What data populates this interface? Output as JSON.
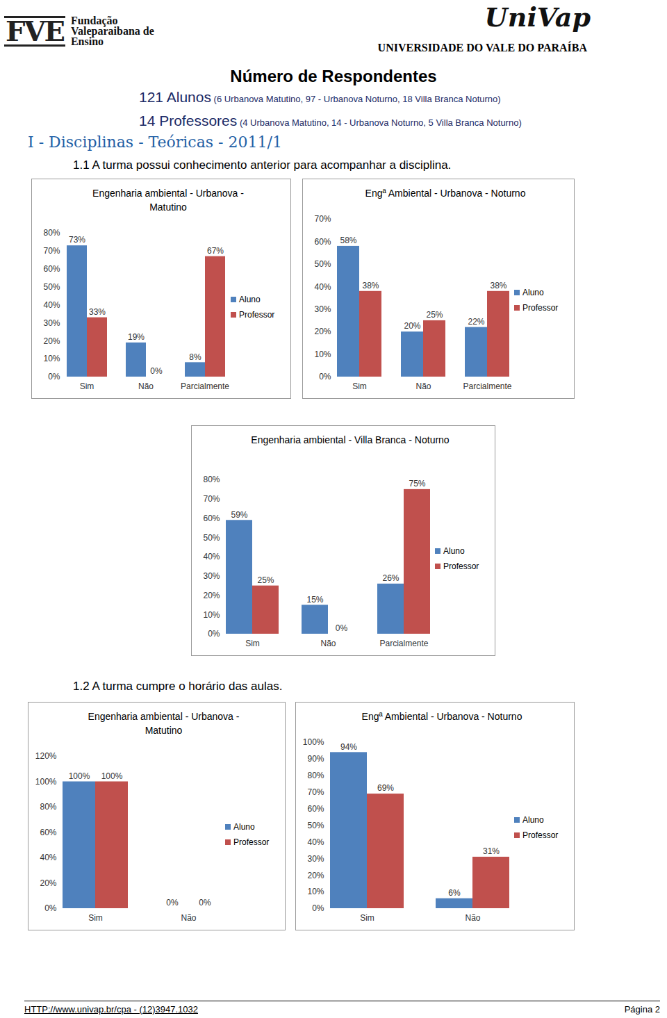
{
  "page": {
    "header": {
      "logo_left": "FVE",
      "org_left": [
        "Fundação",
        "Valeparaibana de",
        "Ensino"
      ],
      "logo_right": "UniVap",
      "org_right": "UNIVERSIDADE DO VALE DO PARAÍBA"
    },
    "heading": "Número de Respondentes",
    "respondents": [
      {
        "count": "121 Alunos",
        "detail": "(6 Urbanova Matutino, 97 - Urbanova Noturno, 18 Villa Branca Noturno)"
      },
      {
        "count": "14 Professores",
        "detail": "(4 Urbanova Matutino, 14 - Urbanova Noturno, 5 Villa Branca Noturno)"
      }
    ],
    "section": "I - Disciplinas - Teóricas - 2011/1",
    "questions": [
      "1.1 A turma possui conhecimento anterior para acompanhar a disciplina.",
      "1.2 A turma cumpre o horário das aulas."
    ],
    "footer": {
      "link": "HTTP://www.univap.br/cpa - (12)3947.1032",
      "page": "Página 2"
    }
  },
  "chart_data": [
    {
      "type": "bar",
      "title": "Engenharia ambiental - Urbanova - Matutino",
      "categories": [
        "Sim",
        "Não",
        "Parcialmente"
      ],
      "series": [
        {
          "name": "Aluno",
          "color": "#4f81bd",
          "values": [
            73,
            19,
            8
          ],
          "value_labels": [
            "73%",
            "19%",
            "8%"
          ]
        },
        {
          "name": "Professor",
          "color": "#c0504d",
          "values": [
            33,
            0,
            67
          ],
          "value_labels": [
            "33%",
            "0%",
            "67%"
          ]
        }
      ],
      "ylim": [
        0,
        80
      ],
      "yticks": [
        {
          "value": 0,
          "label": "0%"
        },
        {
          "value": 10,
          "label": "10%"
        },
        {
          "value": 20,
          "label": "20%"
        },
        {
          "value": 30,
          "label": "30%"
        },
        {
          "value": 40,
          "label": "40%"
        },
        {
          "value": 50,
          "label": "50%"
        },
        {
          "value": 60,
          "label": "60%"
        },
        {
          "value": 70,
          "label": "70%"
        },
        {
          "value": 80,
          "label": "80%"
        }
      ],
      "grid": false,
      "legend": "right",
      "data_labels": true
    },
    {
      "type": "bar",
      "title": "Engª Ambiental - Urbanova - Noturno",
      "categories": [
        "Sim",
        "Não",
        "Parcialmente"
      ],
      "series": [
        {
          "name": "Aluno",
          "color": "#4f81bd",
          "values": [
            58,
            20,
            22
          ],
          "value_labels": [
            "58%",
            "20%",
            "22%"
          ]
        },
        {
          "name": "Professor",
          "color": "#c0504d",
          "values": [
            38,
            25,
            38
          ],
          "value_labels": [
            "38%",
            "25%",
            "38%"
          ]
        }
      ],
      "ylim": [
        0,
        70
      ],
      "yticks": [
        {
          "value": 0,
          "label": "0%"
        },
        {
          "value": 10,
          "label": "10%"
        },
        {
          "value": 20,
          "label": "20%"
        },
        {
          "value": 30,
          "label": "30%"
        },
        {
          "value": 40,
          "label": "40%"
        },
        {
          "value": 50,
          "label": "50%"
        },
        {
          "value": 60,
          "label": "60%"
        },
        {
          "value": 70,
          "label": "70%"
        }
      ],
      "grid": false,
      "legend": "right",
      "data_labels": true
    },
    {
      "type": "bar",
      "title": "Engenharia ambiental - Villa Branca - Noturno",
      "categories": [
        "Sim",
        "Não",
        "Parcialmente"
      ],
      "series": [
        {
          "name": "Aluno",
          "color": "#4f81bd",
          "values": [
            59,
            15,
            26
          ],
          "value_labels": [
            "59%",
            "15%",
            "26%"
          ]
        },
        {
          "name": "Professor",
          "color": "#c0504d",
          "values": [
            25,
            0,
            75
          ],
          "value_labels": [
            "25%",
            "0%",
            "75%"
          ]
        }
      ],
      "ylim": [
        0,
        80
      ],
      "yticks": [
        {
          "value": 0,
          "label": "0%"
        },
        {
          "value": 10,
          "label": "10%"
        },
        {
          "value": 20,
          "label": "20%"
        },
        {
          "value": 30,
          "label": "30%"
        },
        {
          "value": 40,
          "label": "40%"
        },
        {
          "value": 50,
          "label": "50%"
        },
        {
          "value": 60,
          "label": "60%"
        },
        {
          "value": 70,
          "label": "70%"
        },
        {
          "value": 80,
          "label": "80%"
        }
      ],
      "grid": false,
      "legend": "right",
      "data_labels": true
    },
    {
      "type": "bar",
      "title": "Engenharia ambiental - Urbanova - Matutino",
      "categories": [
        "Sim",
        "Não"
      ],
      "series": [
        {
          "name": "Aluno",
          "color": "#4f81bd",
          "values": [
            100,
            0
          ],
          "value_labels": [
            "100%",
            "0%"
          ]
        },
        {
          "name": "Professor",
          "color": "#c0504d",
          "values": [
            100,
            0
          ],
          "value_labels": [
            "100%",
            "0%"
          ]
        }
      ],
      "ylim": [
        0,
        120
      ],
      "yticks": [
        {
          "value": 0,
          "label": "0%"
        },
        {
          "value": 20,
          "label": "20%"
        },
        {
          "value": 40,
          "label": "40%"
        },
        {
          "value": 60,
          "label": "60%"
        },
        {
          "value": 80,
          "label": "80%"
        },
        {
          "value": 100,
          "label": "100%"
        },
        {
          "value": 120,
          "label": "120%"
        }
      ],
      "grid": false,
      "legend": "right",
      "data_labels": true
    },
    {
      "type": "bar",
      "title": "Engª Ambiental - Urbanova - Noturno",
      "categories": [
        "Sim",
        "Não"
      ],
      "series": [
        {
          "name": "Aluno",
          "color": "#4f81bd",
          "values": [
            94,
            6
          ],
          "value_labels": [
            "94%",
            "6%"
          ]
        },
        {
          "name": "Professor",
          "color": "#c0504d",
          "values": [
            69,
            31
          ],
          "value_labels": [
            "69%",
            "31%"
          ]
        }
      ],
      "ylim": [
        0,
        100
      ],
      "yticks": [
        {
          "value": 0,
          "label": "0%"
        },
        {
          "value": 10,
          "label": "10%"
        },
        {
          "value": 20,
          "label": "20%"
        },
        {
          "value": 30,
          "label": "30%"
        },
        {
          "value": 40,
          "label": "40%"
        },
        {
          "value": 50,
          "label": "50%"
        },
        {
          "value": 60,
          "label": "60%"
        },
        {
          "value": 70,
          "label": "70%"
        },
        {
          "value": 80,
          "label": "80%"
        },
        {
          "value": 90,
          "label": "90%"
        },
        {
          "value": 100,
          "label": "100%"
        }
      ],
      "grid": false,
      "legend": "right",
      "data_labels": true
    }
  ]
}
